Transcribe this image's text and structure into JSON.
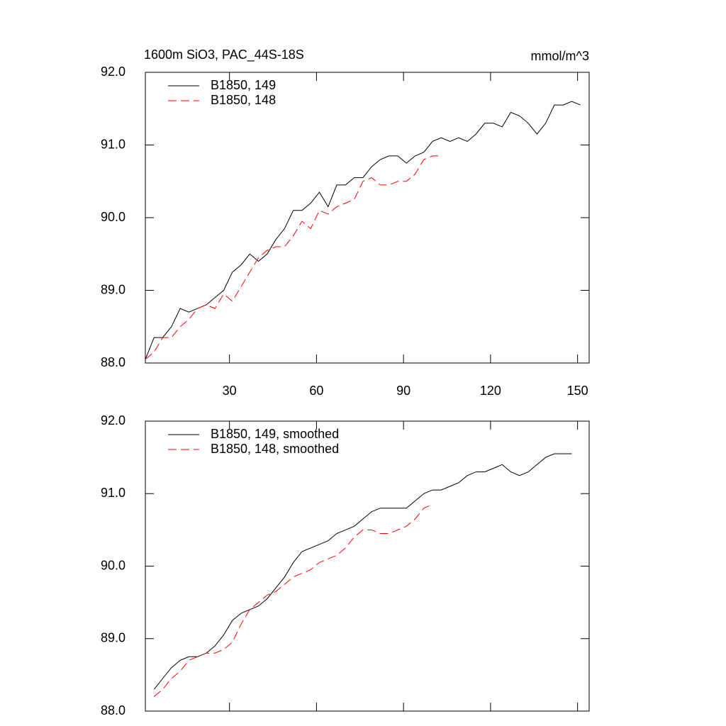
{
  "chart_data": [
    {
      "type": "line",
      "title": "1600m SiO3, PAC_44S-18S",
      "units": "mmol/m^3",
      "x": [
        1,
        4,
        7,
        10,
        13,
        16,
        19,
        22,
        25,
        28,
        31,
        34,
        37,
        40,
        43,
        46,
        49,
        52,
        55,
        58,
        61,
        64,
        67,
        70,
        73,
        76,
        79,
        82,
        85,
        88,
        91,
        94,
        97,
        100,
        103,
        106,
        109,
        112,
        115,
        118,
        121,
        124,
        127,
        130,
        133,
        136,
        139,
        142,
        145,
        148,
        151
      ],
      "series": [
        {
          "name": "B1850, 149",
          "color": "#000000",
          "dash": "solid",
          "values": [
            88.05,
            88.35,
            88.35,
            88.5,
            88.75,
            88.7,
            88.75,
            88.8,
            88.9,
            89.0,
            89.25,
            89.35,
            89.5,
            89.4,
            89.5,
            89.7,
            89.85,
            90.1,
            90.1,
            90.2,
            90.35,
            90.15,
            90.45,
            90.45,
            90.55,
            90.55,
            90.7,
            90.8,
            90.85,
            90.85,
            90.75,
            90.85,
            90.9,
            91.05,
            91.1,
            91.05,
            91.1,
            91.05,
            91.15,
            91.3,
            91.3,
            91.25,
            91.45,
            91.4,
            91.3,
            91.15,
            91.3,
            91.55,
            91.55,
            91.6,
            91.55
          ]
        },
        {
          "name": "B1850, 148",
          "color": "#ff0000",
          "dash": "dashed",
          "values": [
            88.05,
            88.15,
            88.35,
            88.35,
            88.5,
            88.6,
            88.75,
            88.8,
            88.75,
            88.95,
            88.85,
            89.05,
            89.25,
            89.45,
            89.55,
            89.6,
            89.6,
            89.75,
            89.95,
            89.85,
            90.1,
            90.05,
            90.15,
            90.2,
            90.25,
            90.5,
            90.55,
            90.45,
            90.45,
            90.5,
            90.5,
            90.6,
            90.8,
            90.85,
            90.85,
            null,
            null,
            null,
            null,
            null,
            null,
            null,
            null,
            null,
            null,
            null,
            null,
            null,
            null,
            null,
            null
          ]
        }
      ],
      "xlim": [
        1,
        154
      ],
      "ylim": [
        88,
        92
      ],
      "xticks": [
        30,
        60,
        90,
        120,
        150
      ],
      "yticks": [
        {
          "value": 88,
          "label": "88.0"
        },
        {
          "value": 89,
          "label": "89.0"
        },
        {
          "value": 90,
          "label": "90.0"
        },
        {
          "value": 91,
          "label": "91.0"
        },
        {
          "value": 92,
          "label": "92.0"
        }
      ]
    },
    {
      "type": "line",
      "x": [
        1,
        4,
        7,
        10,
        13,
        16,
        19,
        22,
        25,
        28,
        31,
        34,
        37,
        40,
        43,
        46,
        49,
        52,
        55,
        58,
        61,
        64,
        67,
        70,
        73,
        76,
        79,
        82,
        85,
        88,
        91,
        94,
        97,
        100,
        103,
        106,
        109,
        112,
        115,
        118,
        121,
        124,
        127,
        130,
        133,
        136,
        139,
        142,
        145,
        148,
        151
      ],
      "series": [
        {
          "name": "B1850, 149, smoothed",
          "color": "#000000",
          "dash": "solid",
          "values": [
            null,
            88.3,
            88.45,
            88.6,
            88.7,
            88.75,
            88.75,
            88.8,
            88.9,
            89.05,
            89.25,
            89.35,
            89.4,
            89.45,
            89.55,
            89.7,
            89.85,
            90.05,
            90.2,
            90.25,
            90.3,
            90.35,
            90.45,
            90.5,
            90.55,
            90.65,
            90.75,
            90.8,
            90.8,
            90.8,
            90.8,
            90.9,
            91.0,
            91.05,
            91.05,
            91.1,
            91.15,
            91.25,
            91.3,
            91.3,
            91.35,
            91.4,
            91.3,
            91.25,
            91.3,
            91.4,
            91.5,
            91.55,
            91.55,
            91.55,
            null
          ]
        },
        {
          "name": "B1850, 148, smoothed",
          "color": "#ff0000",
          "dash": "dashed",
          "values": [
            null,
            88.2,
            88.3,
            88.45,
            88.55,
            88.7,
            88.75,
            88.8,
            88.8,
            88.85,
            88.95,
            89.2,
            89.4,
            89.5,
            89.6,
            89.65,
            89.75,
            89.85,
            89.9,
            89.95,
            90.05,
            90.1,
            90.15,
            90.25,
            90.4,
            90.5,
            90.5,
            90.45,
            90.45,
            90.5,
            90.55,
            90.65,
            90.8,
            90.85,
            null,
            null,
            null,
            null,
            null,
            null,
            null,
            null,
            null,
            null,
            null,
            null,
            null,
            null,
            null,
            null,
            null
          ]
        }
      ],
      "xlim": [
        1,
        154
      ],
      "ylim": [
        88,
        92
      ],
      "xticks": [
        30,
        60,
        90,
        120,
        150
      ],
      "yticks": [
        {
          "value": 88,
          "label": "88.0"
        },
        {
          "value": 89,
          "label": "89.0"
        },
        {
          "value": 90,
          "label": "90.0"
        },
        {
          "value": 91,
          "label": "91.0"
        },
        {
          "value": 92,
          "label": "92.0"
        }
      ]
    }
  ]
}
